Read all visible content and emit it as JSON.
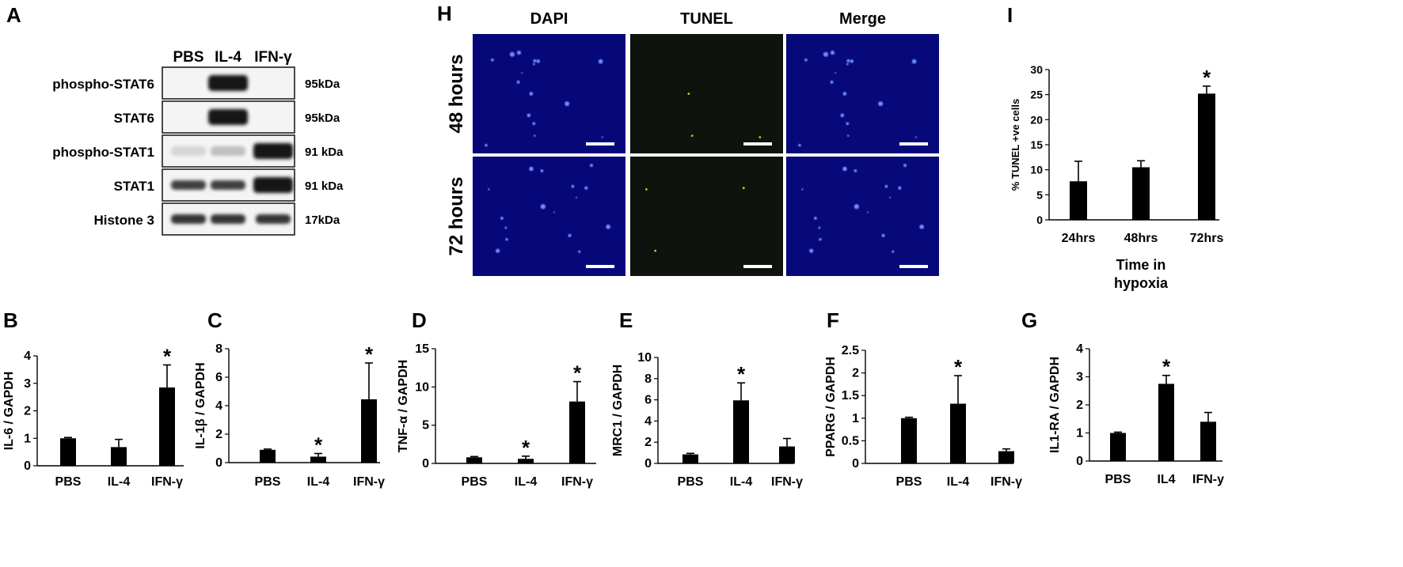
{
  "panel_letters": {
    "A": "A",
    "H": "H",
    "I": "I"
  },
  "western_blot": {
    "columns": [
      "PBS",
      "IL-4",
      "IFN-γ"
    ],
    "rows": [
      {
        "label": "phospho-STAT6",
        "kda": "95kDa",
        "bands": [
          0,
          1,
          0
        ]
      },
      {
        "label": "STAT6",
        "kda": "95kDa",
        "bands": [
          0,
          1,
          0
        ]
      },
      {
        "label": "phospho-STAT1",
        "kda": "91 kDa",
        "bands": [
          0.1,
          0.2,
          1
        ]
      },
      {
        "label": "STAT1",
        "kda": "91 kDa",
        "bands": [
          0.8,
          0.8,
          1
        ]
      },
      {
        "label": "Histone 3",
        "kda": "17kDa",
        "bands": [
          0.85,
          0.85,
          0.85
        ]
      }
    ]
  },
  "microscopy": {
    "columns": [
      "DAPI",
      "TUNEL",
      "Merge"
    ],
    "rows": [
      "48 hours",
      "72 hours"
    ]
  },
  "chart_data": [
    {
      "id": "I",
      "letter": "I",
      "type": "bar",
      "categories": [
        "24hrs",
        "48hrs",
        "72hrs"
      ],
      "values": [
        7.7,
        10.5,
        25.2
      ],
      "errors": [
        4.0,
        1.3,
        1.5
      ],
      "star": [
        false,
        false,
        true
      ],
      "ylabel": "% TUNEL +ve cells",
      "xlabel": "Time in hypoxia",
      "xlabel_lines": [
        "Time in",
        "hypoxia"
      ],
      "ylim": [
        0,
        30
      ],
      "yticks": [
        "0",
        "5",
        "10",
        "15",
        "20",
        "25",
        "30"
      ]
    },
    {
      "id": "B",
      "letter": "B",
      "type": "bar",
      "categories": [
        "PBS",
        "IL-4",
        "IFN-γ"
      ],
      "values": [
        1.0,
        0.68,
        2.85
      ],
      "errors": [
        0.03,
        0.28,
        0.82
      ],
      "star": [
        false,
        false,
        true
      ],
      "ylabel": "IL-6 / GAPDH",
      "ylim": [
        0,
        4
      ],
      "yticks": [
        "0",
        "1",
        "2",
        "3",
        "4"
      ]
    },
    {
      "id": "C",
      "letter": "C",
      "type": "bar",
      "categories": [
        "PBS",
        "IL-4",
        "IFN-γ"
      ],
      "values": [
        0.9,
        0.42,
        4.45
      ],
      "errors": [
        0.05,
        0.22,
        2.55
      ],
      "star": [
        false,
        true,
        true
      ],
      "ylabel": "IL-1β / GAPDH",
      "ylim": [
        0,
        8
      ],
      "yticks": [
        "0",
        "2",
        "4",
        "6",
        "8"
      ]
    },
    {
      "id": "D",
      "letter": "D",
      "type": "bar",
      "categories": [
        "PBS",
        "IL-4",
        "IFN-γ"
      ],
      "values": [
        0.8,
        0.6,
        8.1
      ],
      "errors": [
        0.1,
        0.35,
        2.6
      ],
      "star": [
        false,
        true,
        true
      ],
      "ylabel": "TNF-α / GAPDH",
      "ylim": [
        0,
        15
      ],
      "yticks": [
        "0",
        "5",
        "10",
        "15"
      ]
    },
    {
      "id": "E",
      "letter": "E",
      "type": "bar",
      "categories": [
        "PBS",
        "IL-4",
        "IFN-γ"
      ],
      "values": [
        0.85,
        5.95,
        1.6
      ],
      "errors": [
        0.1,
        1.65,
        0.75
      ],
      "star": [
        false,
        true,
        false
      ],
      "ylabel": "MRC1 / GAPDH",
      "ylim": [
        0,
        10
      ],
      "yticks": [
        "0",
        "2",
        "4",
        "6",
        "8",
        "10"
      ]
    },
    {
      "id": "F",
      "letter": "F",
      "type": "bar",
      "categories": [
        "PBS",
        "IL-4",
        "IFN-γ"
      ],
      "values": [
        1.0,
        1.32,
        0.27
      ],
      "errors": [
        0.02,
        0.62,
        0.05
      ],
      "star": [
        false,
        true,
        false
      ],
      "ylabel": "PPARG / GAPDH",
      "ylim": [
        0,
        2.5
      ],
      "yticks": [
        "0",
        "0.5",
        "1",
        "1.5",
        "2",
        "2.5"
      ]
    },
    {
      "id": "G",
      "letter": "G",
      "type": "bar",
      "categories": [
        "PBS",
        "IL4",
        "IFN-y"
      ],
      "values": [
        1.0,
        2.75,
        1.4
      ],
      "errors": [
        0.03,
        0.3,
        0.33
      ],
      "star": [
        false,
        true,
        false
      ],
      "ylabel": "IL1-RA / GAPDH",
      "ylim": [
        0,
        4
      ],
      "yticks": [
        "0",
        "1",
        "2",
        "3",
        "4"
      ]
    }
  ]
}
